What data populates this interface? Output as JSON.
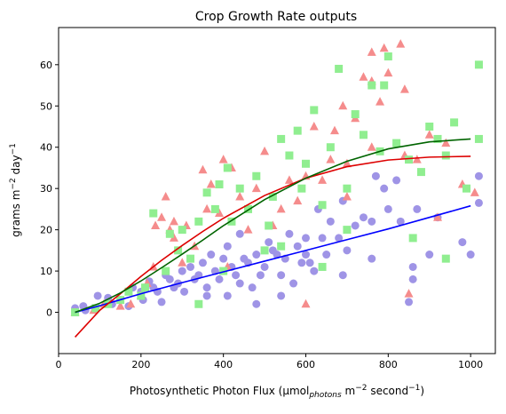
{
  "chart_data": {
    "type": "scatter",
    "title": "Crop Growth Rate outputs",
    "xlabel": {
      "main": "Photosynthetic Photon Flux (µmol",
      "sub": "photons",
      "mid": " m",
      "sup1": "−2",
      "mid2": " second",
      "sup2": "−1",
      "end": ")"
    },
    "ylabel": {
      "main": "grams m",
      "sup1": "−2",
      "mid": " day",
      "sup2": "−1"
    },
    "xlim": [
      0,
      1060
    ],
    "ylim": [
      -10,
      69
    ],
    "xticks": [
      0,
      200,
      400,
      600,
      800,
      1000
    ],
    "yticks": [
      0,
      10,
      20,
      30,
      40,
      50,
      60
    ],
    "xtick_labels": [
      "0",
      "200",
      "400",
      "600",
      "800",
      "1000"
    ],
    "ytick_labels": [
      "0",
      "10",
      "20",
      "30",
      "40",
      "50",
      "60"
    ],
    "grid": false,
    "series": [
      {
        "marker": "circle",
        "color": "#9f94e6",
        "points": [
          [
            40,
            1
          ],
          [
            60,
            1.5
          ],
          [
            65,
            0.5
          ],
          [
            95,
            4
          ],
          [
            120,
            3.5
          ],
          [
            130,
            2
          ],
          [
            150,
            3
          ],
          [
            170,
            1.5
          ],
          [
            180,
            6
          ],
          [
            200,
            5
          ],
          [
            205,
            3
          ],
          [
            220,
            7.5
          ],
          [
            230,
            6
          ],
          [
            240,
            5
          ],
          [
            250,
            2.5
          ],
          [
            260,
            9
          ],
          [
            270,
            8
          ],
          [
            280,
            6
          ],
          [
            290,
            7
          ],
          [
            300,
            10
          ],
          [
            305,
            5
          ],
          [
            320,
            11
          ],
          [
            330,
            8
          ],
          [
            340,
            9
          ],
          [
            350,
            12
          ],
          [
            360,
            6
          ],
          [
            370,
            14
          ],
          [
            380,
            10
          ],
          [
            390,
            8
          ],
          [
            400,
            13
          ],
          [
            410,
            16
          ],
          [
            420,
            11
          ],
          [
            430,
            9
          ],
          [
            440,
            19
          ],
          [
            450,
            13
          ],
          [
            460,
            12
          ],
          [
            470,
            6
          ],
          [
            480,
            14
          ],
          [
            490,
            9
          ],
          [
            500,
            11
          ],
          [
            510,
            17
          ],
          [
            520,
            15
          ],
          [
            530,
            14
          ],
          [
            540,
            9
          ],
          [
            550,
            13
          ],
          [
            560,
            19
          ],
          [
            570,
            7
          ],
          [
            580,
            16
          ],
          [
            590,
            12
          ],
          [
            600,
            18
          ],
          [
            610,
            12
          ],
          [
            620,
            10
          ],
          [
            630,
            25
          ],
          [
            640,
            18
          ],
          [
            650,
            14
          ],
          [
            660,
            22
          ],
          [
            680,
            18
          ],
          [
            690,
            27
          ],
          [
            700,
            15
          ],
          [
            720,
            21
          ],
          [
            740,
            23
          ],
          [
            760,
            22
          ],
          [
            770,
            33
          ],
          [
            790,
            30
          ],
          [
            800,
            25
          ],
          [
            820,
            32
          ],
          [
            830,
            22
          ],
          [
            850,
            2.5
          ],
          [
            860,
            11
          ],
          [
            870,
            25
          ],
          [
            900,
            14
          ],
          [
            920,
            23
          ],
          [
            980,
            17
          ],
          [
            1000,
            14
          ],
          [
            1020,
            33
          ],
          [
            1020,
            26.5
          ],
          [
            360,
            4
          ],
          [
            410,
            4
          ],
          [
            480,
            2
          ],
          [
            540,
            4
          ],
          [
            600,
            14
          ],
          [
            690,
            9
          ],
          [
            860,
            8
          ],
          [
            760,
            13
          ],
          [
            440,
            7
          ]
        ]
      },
      {
        "marker": "triangle",
        "color": "#f58c8c",
        "points": [
          [
            40,
            0
          ],
          [
            85,
            0.5
          ],
          [
            110,
            2
          ],
          [
            150,
            1.5
          ],
          [
            175,
            2
          ],
          [
            200,
            4
          ],
          [
            215,
            7
          ],
          [
            235,
            21
          ],
          [
            250,
            23
          ],
          [
            260,
            28
          ],
          [
            270,
            20
          ],
          [
            280,
            18
          ],
          [
            300,
            12
          ],
          [
            310,
            21
          ],
          [
            330,
            16
          ],
          [
            350,
            34.5
          ],
          [
            360,
            25
          ],
          [
            370,
            31
          ],
          [
            390,
            24
          ],
          [
            400,
            37
          ],
          [
            420,
            35
          ],
          [
            440,
            28
          ],
          [
            460,
            20
          ],
          [
            480,
            30
          ],
          [
            500,
            39
          ],
          [
            520,
            21
          ],
          [
            540,
            25
          ],
          [
            560,
            32
          ],
          [
            580,
            27
          ],
          [
            600,
            33
          ],
          [
            620,
            45
          ],
          [
            640,
            32
          ],
          [
            660,
            37
          ],
          [
            670,
            44
          ],
          [
            690,
            50
          ],
          [
            700,
            28
          ],
          [
            720,
            47
          ],
          [
            740,
            57
          ],
          [
            760,
            40
          ],
          [
            780,
            51
          ],
          [
            790,
            64
          ],
          [
            800,
            58
          ],
          [
            830,
            65
          ],
          [
            840,
            54
          ],
          [
            850,
            4.5
          ],
          [
            870,
            37
          ],
          [
            900,
            43
          ],
          [
            920,
            23
          ],
          [
            940,
            41
          ],
          [
            980,
            31
          ],
          [
            1010,
            29
          ],
          [
            230,
            11
          ],
          [
            280,
            22
          ],
          [
            410,
            11
          ],
          [
            600,
            2
          ],
          [
            700,
            36
          ],
          [
            760,
            56
          ],
          [
            840,
            38
          ],
          [
            760,
            63
          ]
        ]
      },
      {
        "marker": "square",
        "color": "#90ee90",
        "points": [
          [
            40,
            0
          ],
          [
            90,
            1
          ],
          [
            120,
            2
          ],
          [
            150,
            3
          ],
          [
            170,
            5
          ],
          [
            200,
            4
          ],
          [
            210,
            6
          ],
          [
            230,
            24
          ],
          [
            260,
            10
          ],
          [
            270,
            19
          ],
          [
            290,
            15
          ],
          [
            300,
            20
          ],
          [
            320,
            13
          ],
          [
            340,
            22
          ],
          [
            360,
            29
          ],
          [
            380,
            25
          ],
          [
            390,
            31
          ],
          [
            400,
            10
          ],
          [
            410,
            35
          ],
          [
            420,
            22
          ],
          [
            440,
            30
          ],
          [
            460,
            25
          ],
          [
            480,
            33
          ],
          [
            500,
            15
          ],
          [
            510,
            21
          ],
          [
            520,
            28
          ],
          [
            540,
            42
          ],
          [
            560,
            38
          ],
          [
            580,
            44
          ],
          [
            590,
            30
          ],
          [
            600,
            36
          ],
          [
            620,
            49
          ],
          [
            640,
            26
          ],
          [
            660,
            40
          ],
          [
            680,
            59
          ],
          [
            700,
            30
          ],
          [
            720,
            48
          ],
          [
            740,
            43
          ],
          [
            760,
            55
          ],
          [
            780,
            39
          ],
          [
            790,
            55
          ],
          [
            800,
            62
          ],
          [
            820,
            41
          ],
          [
            850,
            37
          ],
          [
            880,
            34
          ],
          [
            900,
            45
          ],
          [
            920,
            42
          ],
          [
            940,
            38
          ],
          [
            960,
            46
          ],
          [
            990,
            30
          ],
          [
            1020,
            60
          ],
          [
            1020,
            42
          ],
          [
            340,
            2
          ],
          [
            540,
            16
          ],
          [
            700,
            20
          ],
          [
            860,
            18
          ],
          [
            940,
            13
          ],
          [
            640,
            11
          ]
        ]
      }
    ],
    "curves": [
      {
        "color": "#0000ff",
        "x": [
          40,
          100,
          200,
          300,
          400,
          500,
          600,
          700,
          800,
          900,
          1000
        ],
        "y": [
          0,
          1.6,
          4.5,
          7.2,
          9.8,
          12.4,
          15,
          17.6,
          20.2,
          23,
          25.8
        ]
      },
      {
        "color": "#dd0000",
        "x": [
          40,
          100,
          150,
          200,
          250,
          300,
          350,
          400,
          500,
          600,
          700,
          800,
          900,
          1000
        ],
        "y": [
          -6,
          0.5,
          4.5,
          8.7,
          12.6,
          16.2,
          19.6,
          22.8,
          28.3,
          32.5,
          35.3,
          36.9,
          37.6,
          37.8
        ]
      },
      {
        "color": "#006400",
        "x": [
          40,
          100,
          150,
          200,
          250,
          300,
          350,
          400,
          500,
          600,
          700,
          800,
          900,
          1000
        ],
        "y": [
          0,
          2.2,
          4.7,
          7.6,
          10.8,
          14.1,
          17.5,
          21,
          27.3,
          32.5,
          36.6,
          39.6,
          41.3,
          42
        ]
      }
    ]
  }
}
